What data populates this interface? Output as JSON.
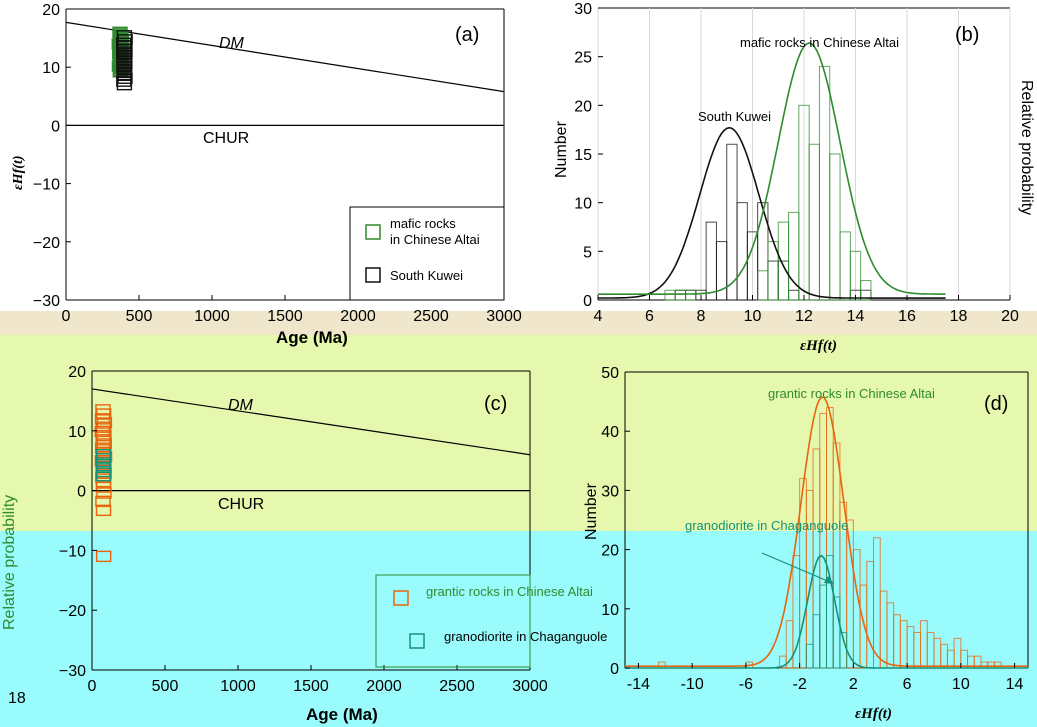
{
  "colors": {
    "band_tan": "#efe6cc",
    "band_green": "#e6f7ae",
    "band_cyan": "#99fbfb",
    "mafic_green": "#2e8b2e",
    "south_kuwei_black": "#111111",
    "grantic_orange": "#e8650e",
    "granodiorite_teal": "#12937a",
    "axis": "#000000"
  },
  "figure_labels": {
    "panel_a_side": "εHf(t)",
    "panel_c_side": "Relative probability",
    "panel_b_side": "Relative probability",
    "bottom_left_number": "18"
  },
  "chart_data": [
    {
      "panel": "(a)",
      "type": "scatter",
      "xlabel": "Age (Ma)",
      "ylabel": "εHf(t)",
      "xlim": [
        0,
        3000
      ],
      "ylim": [
        -30,
        20
      ],
      "xticks": [
        "0",
        "500",
        "1000",
        "1500",
        "2000",
        "2500",
        "3000"
      ],
      "yticks": [
        "20",
        "10",
        "0",
        "−10",
        "−20",
        "−30"
      ],
      "reference_lines": [
        {
          "name": "DM",
          "x": [
            0,
            3000
          ],
          "y": [
            17.7,
            5.8
          ]
        },
        {
          "name": "CHUR",
          "x": [
            0,
            3000
          ],
          "y": [
            0,
            0
          ]
        }
      ],
      "legend": {
        "position": "lower-right",
        "entries": [
          "mafic rocks in Chinese Altai",
          "South Kuwei"
        ]
      },
      "series": [
        {
          "name": "mafic rocks in Chinese Altai",
          "color": "#2e8b2e",
          "points": [
            [
              370,
              16
            ],
            [
              375,
              15.2
            ],
            [
              380,
              14.6
            ],
            [
              365,
              14
            ],
            [
              372,
              13.5
            ],
            [
              378,
              13
            ],
            [
              368,
              12.4
            ],
            [
              376,
              11.8
            ],
            [
              370,
              11.2
            ],
            [
              374,
              10.8
            ],
            [
              366,
              10.2
            ],
            [
              380,
              9.8
            ],
            [
              372,
              9.2
            ]
          ]
        },
        {
          "name": "South Kuwei",
          "color": "#111111",
          "points": [
            [
              400,
              15.4
            ],
            [
              405,
              14.7
            ],
            [
              395,
              14.1
            ],
            [
              402,
              13.6
            ],
            [
              398,
              13.1
            ],
            [
              404,
              12.6
            ],
            [
              396,
              12.1
            ],
            [
              401,
              11.6
            ],
            [
              399,
              11.1
            ],
            [
              403,
              10.6
            ],
            [
              397,
              10.1
            ],
            [
              400,
              9.6
            ],
            [
              402,
              9.1
            ],
            [
              398,
              8.6
            ],
            [
              404,
              8.1
            ],
            [
              396,
              7.6
            ],
            [
              400,
              7
            ]
          ]
        }
      ]
    },
    {
      "panel": "(b)",
      "type": "bar",
      "xlabel": "εHf(t)",
      "ylabel": "Number",
      "xlim": [
        4,
        20
      ],
      "ylim": [
        0,
        30
      ],
      "xticks": [
        "4",
        "6",
        "8",
        "10",
        "12",
        "14",
        "16",
        "18",
        "20"
      ],
      "yticks": [
        "0",
        "5",
        "10",
        "15",
        "20",
        "25",
        "30"
      ],
      "grid": true,
      "series": [
        {
          "name": "South Kuwei",
          "color": "#111111",
          "bin_width": 0.4,
          "bins": [
            [
              7,
              1
            ],
            [
              7.4,
              1
            ],
            [
              7.8,
              1
            ],
            [
              8.2,
              8
            ],
            [
              8.6,
              6
            ],
            [
              9,
              16
            ],
            [
              9.4,
              10
            ],
            [
              9.8,
              7
            ],
            [
              10.2,
              10
            ],
            [
              10.6,
              4
            ],
            [
              11,
              4
            ],
            [
              11.4,
              1
            ],
            [
              13.8,
              1
            ],
            [
              14.2,
              1
            ]
          ],
          "curve": {
            "mean": 9.1,
            "sd": 1.15,
            "peak": 17.5,
            "baseline": 0.2
          }
        },
        {
          "name": "mafic rocks in Chinese Altai",
          "color": "#2e8b2e",
          "bin_width": 0.4,
          "bins": [
            [
              6.6,
              1
            ],
            [
              7,
              1
            ],
            [
              7.4,
              1
            ],
            [
              10.2,
              3
            ],
            [
              10.6,
              6
            ],
            [
              11,
              8
            ],
            [
              11.4,
              9
            ],
            [
              11.8,
              20
            ],
            [
              12.2,
              16
            ],
            [
              12.6,
              24
            ],
            [
              13,
              15
            ],
            [
              13.4,
              7
            ],
            [
              13.8,
              5
            ],
            [
              14.2,
              2
            ]
          ],
          "curve": {
            "mean": 12.2,
            "sd": 1.2,
            "peak": 25.8,
            "baseline": 0.6
          }
        }
      ],
      "annotations": [
        "mafic rocks in Chinese Altai",
        "South Kuwei"
      ]
    },
    {
      "panel": "(c)",
      "type": "scatter",
      "xlabel": "Age (Ma)",
      "ylabel": "εHf(t)",
      "xlim": [
        0,
        3000
      ],
      "ylim": [
        -30,
        20
      ],
      "xticks": [
        "0",
        "500",
        "1000",
        "1500",
        "2000",
        "2500",
        "3000"
      ],
      "yticks": [
        "20",
        "10",
        "0",
        "−10",
        "−20",
        "−30"
      ],
      "reference_lines": [
        {
          "name": "DM",
          "x": [
            0,
            3000
          ],
          "y": [
            17,
            6
          ]
        },
        {
          "name": "CHUR",
          "x": [
            0,
            3000
          ],
          "y": [
            0,
            0
          ]
        }
      ],
      "legend": {
        "position": "lower-right",
        "entries": [
          "grantic rocks in Chinese Altai",
          "granodiorite in Chaganguole"
        ]
      },
      "series": [
        {
          "name": "grantic rocks in Chinese Altai",
          "color": "#e8650e",
          "points": [
            [
              75,
              13.5
            ],
            [
              80,
              12.8
            ],
            [
              72,
              12
            ],
            [
              85,
              11.3
            ],
            [
              78,
              10.6
            ],
            [
              70,
              9.9
            ],
            [
              82,
              9.2
            ],
            [
              76,
              8.5
            ],
            [
              84,
              7.8
            ],
            [
              73,
              7.1
            ],
            [
              79,
              6.4
            ],
            [
              86,
              5.7
            ],
            [
              71,
              5
            ],
            [
              81,
              4.3
            ],
            [
              77,
              3.6
            ],
            [
              83,
              2.9
            ],
            [
              74,
              2.2
            ],
            [
              80,
              1.5
            ],
            [
              78,
              0.6
            ],
            [
              82,
              -0.4
            ],
            [
              75,
              -1.8
            ],
            [
              79,
              -3.3
            ],
            [
              80,
              -11
            ]
          ]
        },
        {
          "name": "granodiorite in Chaganguole",
          "color": "#12937a",
          "points": [
            [
              78,
              6
            ],
            [
              80,
              5.3
            ],
            [
              76,
              4.6
            ],
            [
              81,
              3.9
            ],
            [
              77,
              3.2
            ],
            [
              79,
              2.5
            ]
          ]
        }
      ]
    },
    {
      "panel": "(d)",
      "type": "bar",
      "xlabel": "εHf(t)",
      "ylabel": "Number",
      "xlim": [
        -15,
        15
      ],
      "ylim": [
        0,
        50
      ],
      "xticks": [
        "-14",
        "-10",
        "-6",
        "-2",
        "2",
        "6",
        "10",
        "14"
      ],
      "yticks": [
        "0",
        "10",
        "20",
        "30",
        "40",
        "50"
      ],
      "series": [
        {
          "name": "grantic rocks in Chinese Altai",
          "color": "#e8650e",
          "bin_width": 0.5,
          "bins": [
            [
              -3.5,
              2
            ],
            [
              -3,
              8
            ],
            [
              -2.5,
              19
            ],
            [
              -2,
              32
            ],
            [
              -1.5,
              30
            ],
            [
              -1,
              37
            ],
            [
              -0.5,
              43
            ],
            [
              0,
              44
            ],
            [
              0.5,
              38
            ],
            [
              1,
              28
            ],
            [
              1.5,
              25
            ],
            [
              2,
              20
            ],
            [
              2.5,
              14
            ],
            [
              3,
              18
            ],
            [
              3.5,
              22
            ],
            [
              4,
              13
            ],
            [
              4.5,
              11
            ],
            [
              5,
              9
            ],
            [
              5.5,
              8
            ],
            [
              6,
              7
            ],
            [
              6.5,
              6
            ],
            [
              7,
              8
            ],
            [
              7.5,
              6
            ],
            [
              8,
              5
            ],
            [
              8.5,
              4
            ],
            [
              9,
              3
            ],
            [
              9.5,
              5
            ],
            [
              10,
              3
            ],
            [
              10.5,
              2
            ],
            [
              11,
              2
            ],
            [
              11.5,
              1
            ],
            [
              12,
              1
            ],
            [
              12.5,
              1
            ],
            [
              -12.5,
              1
            ],
            [
              -6,
              1
            ]
          ],
          "curve": {
            "mean": -0.3,
            "sd": 1.6,
            "peak": 45.5,
            "baseline": 0.3
          }
        },
        {
          "name": "granodiorite in Chaganguole",
          "color": "#12937a",
          "bin_width": 0.5,
          "bins": [
            [
              -1.5,
              4
            ],
            [
              -1,
              9
            ],
            [
              -0.5,
              14
            ],
            [
              0,
              19
            ],
            [
              0.5,
              12
            ],
            [
              1,
              6
            ]
          ],
          "curve": {
            "mean": -0.4,
            "sd": 1.0,
            "peak": 19,
            "baseline": 0
          }
        }
      ],
      "annotations": [
        "grantic rocks in Chinese Altai",
        "granodiorite in Chaganguole"
      ]
    }
  ]
}
